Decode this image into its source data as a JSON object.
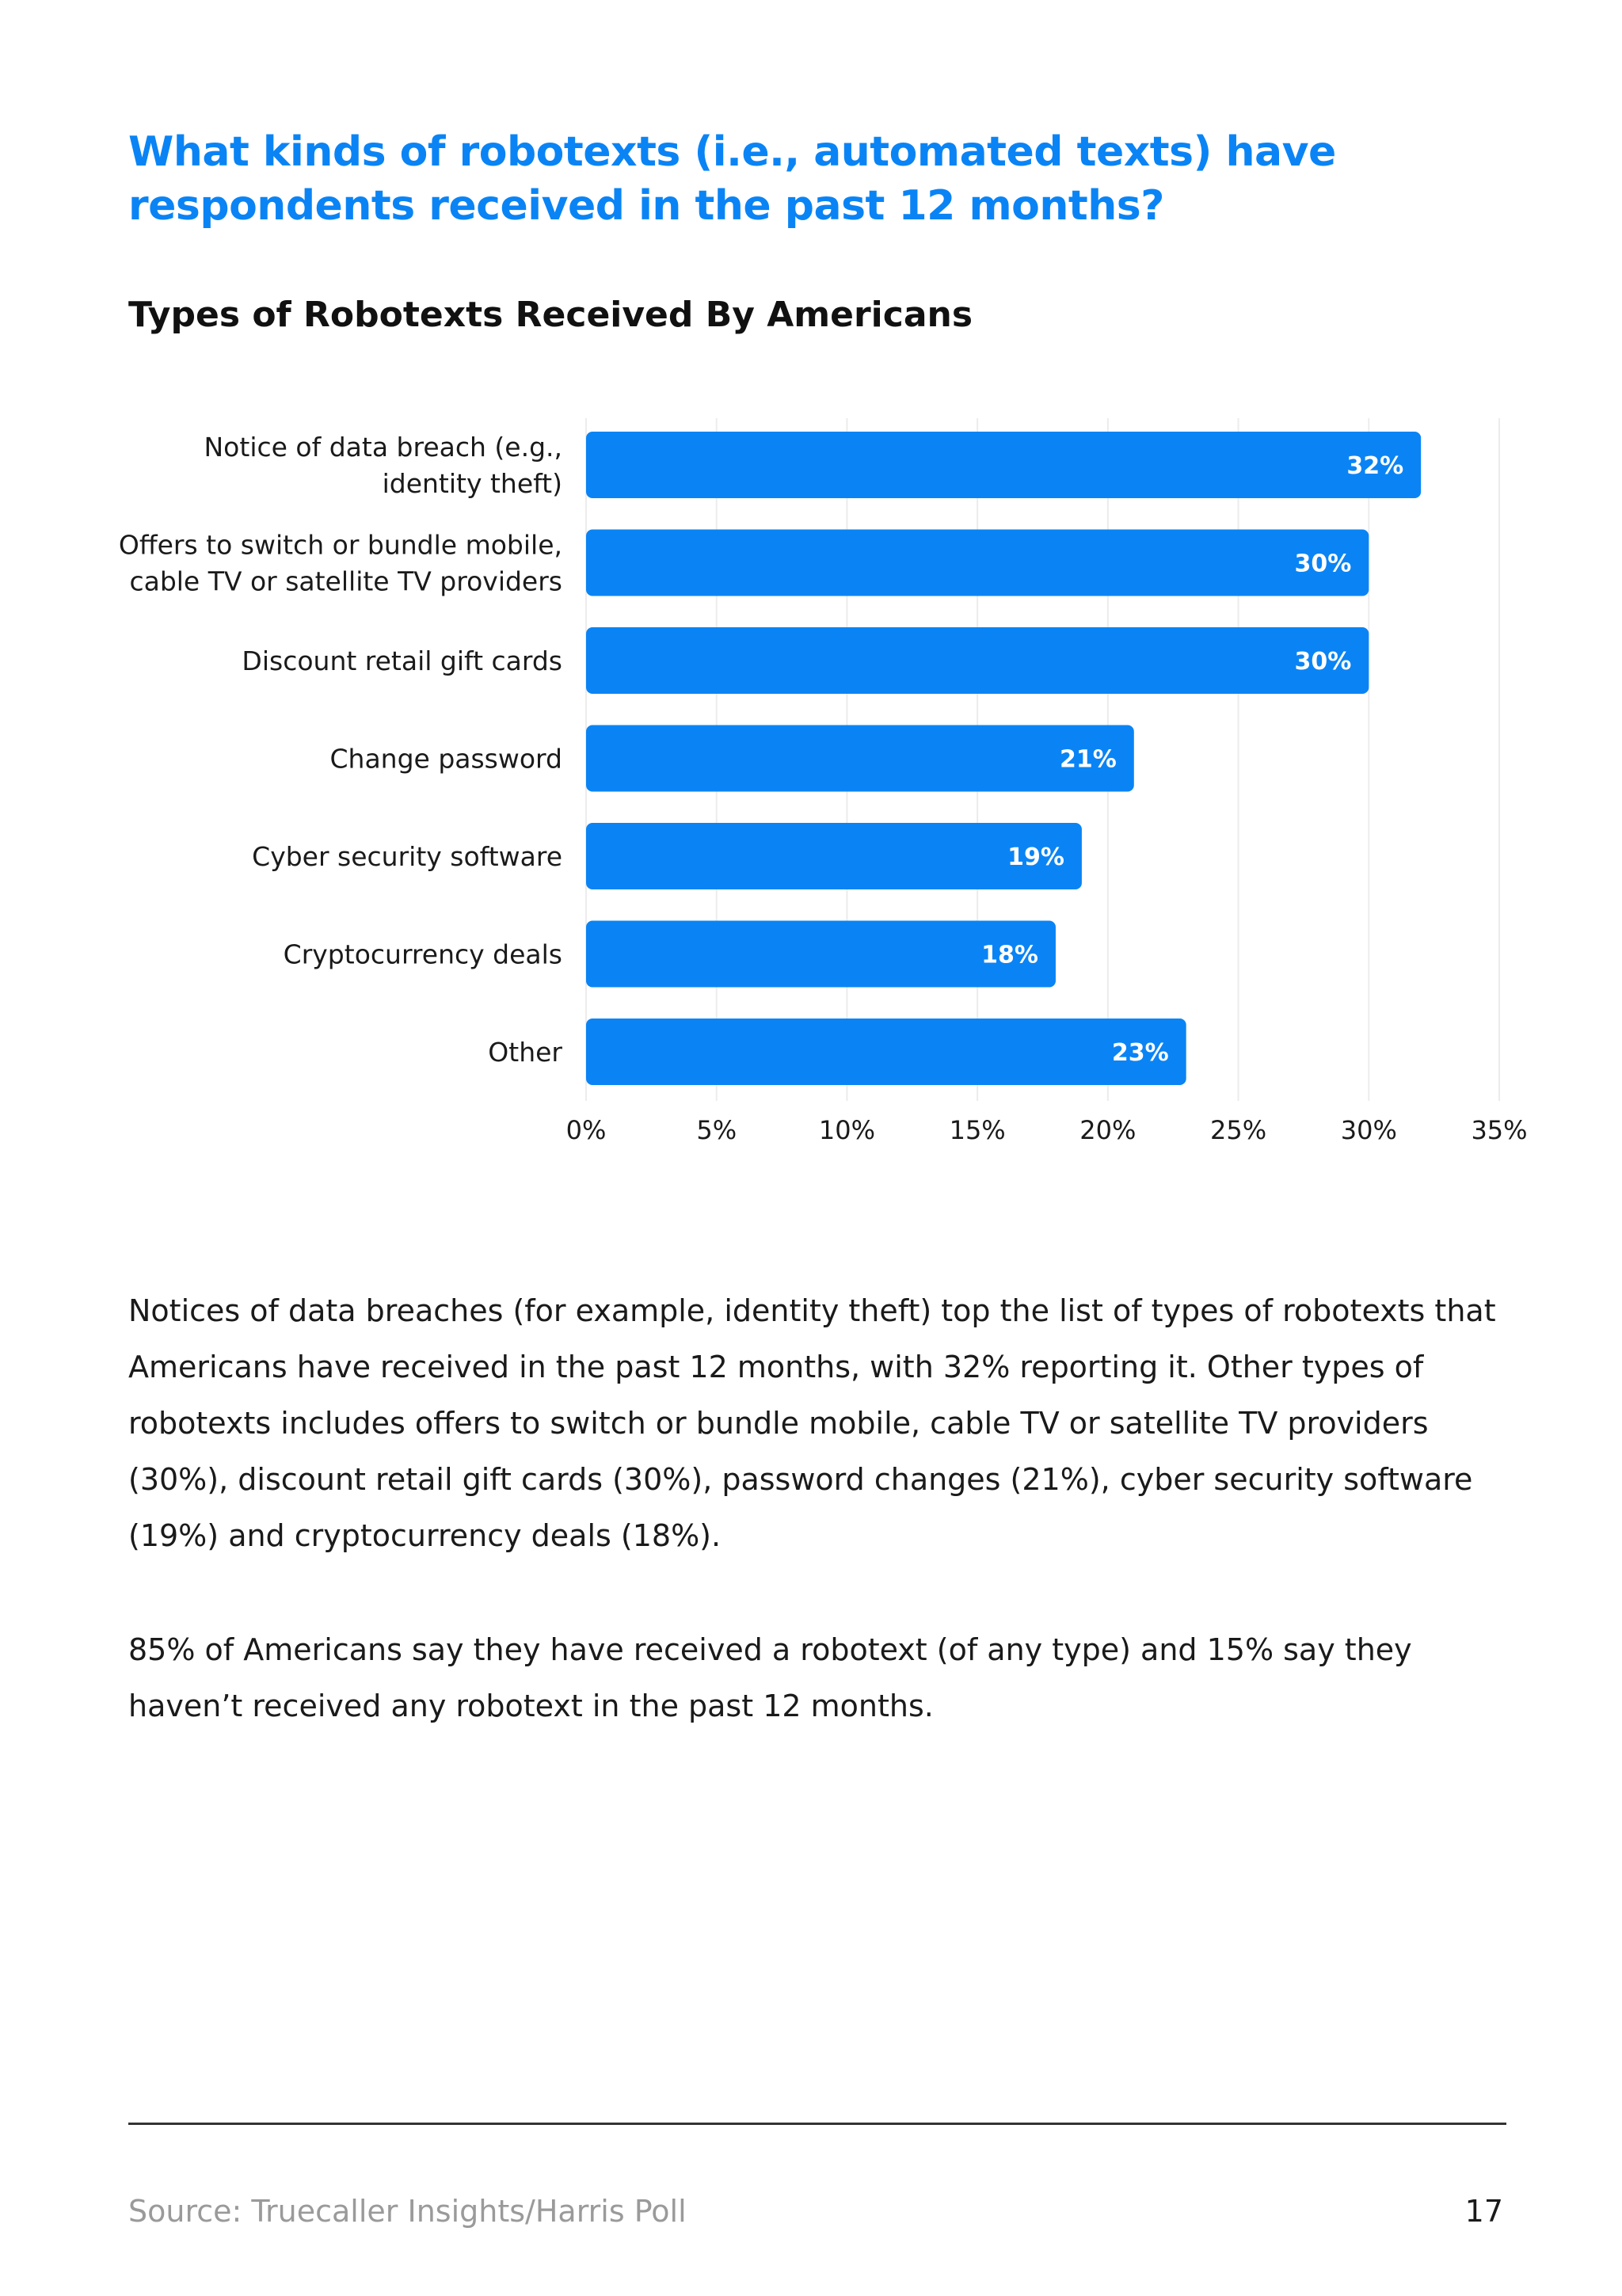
{
  "heading": "What kinds of robotexts (i.e., automated texts) have respondents received in the past 12 months?",
  "chart_data": {
    "type": "bar",
    "orientation": "horizontal",
    "title": "Types of Robotexts Received By Americans",
    "categories": [
      [
        "Notice of data breach (e.g.,",
        "identity theft)"
      ],
      [
        "Offers to switch or bundle mobile,",
        "cable TV or satellite TV providers"
      ],
      [
        "Discount retail gift cards"
      ],
      [
        "Change password"
      ],
      [
        "Cyber security software"
      ],
      [
        "Cryptocurrency deals"
      ],
      [
        "Other"
      ]
    ],
    "values": [
      32,
      30,
      30,
      21,
      19,
      18,
      23
    ],
    "value_labels": [
      "32%",
      "30%",
      "30%",
      "21%",
      "19%",
      "18%",
      "23%"
    ],
    "xlim": [
      0,
      35
    ],
    "ticks": [
      0,
      5,
      10,
      15,
      20,
      25,
      30,
      35
    ],
    "tick_labels": [
      "0%",
      "5%",
      "10%",
      "15%",
      "20%",
      "25%",
      "30%",
      "35%"
    ],
    "xlabel": "",
    "ylabel": "",
    "grid": true,
    "bar_color": "#0a84f5"
  },
  "body": {
    "paragraph1": "Notices of data breaches (for example, identity theft) top the list of types of robotexts that Americans have received in the past 12 months, with 32% reporting it. Other types of robotexts includes offers to switch or bundle mobile, cable TV or satellite TV providers (30%), discount retail gift cards (30%), password changes (21%), cyber security software (19%) and cryptocurrency deals (18%).",
    "paragraph2": "85% of Americans say they have received a robotext (of any type) and 15% say they haven’t received any robotext in the past 12 months."
  },
  "footer": {
    "source": "Source: Truecaller Insights/Harris Poll",
    "page_number": "17"
  },
  "colors": {
    "accent": "#0a84f5",
    "grid": "#ececec"
  }
}
